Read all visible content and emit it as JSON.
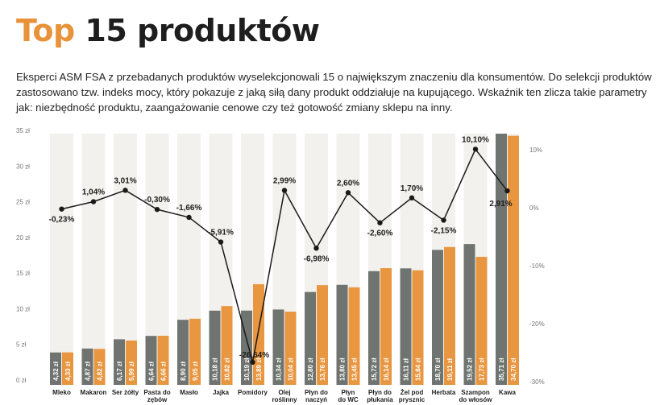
{
  "title_accent": "Top",
  "title_rest": "15 produktów",
  "intro": "Eksperci ASM FSA z przebadanych produktów wyselekcjonowali 15 o największym znaczeniu dla konsumentów. Do selekcji produktów zastosowano tzw. indeks mocy, który pokazuje z jaką siłą dany produkt oddziałuje na kupującego. Wskaźnik ten zlicza takie parametry jak: niezbędność produktu, zaangażowanie cenowe czy też gotowość zmiany sklepu na inny.",
  "colors": {
    "bar1": "#6f7470",
    "bar2": "#e8963f",
    "column": "#f2f1ed",
    "line": "#1a1a1a",
    "title_accent": "#e8923a"
  },
  "chart_data": {
    "type": "bar",
    "categories": [
      [
        "Mleko"
      ],
      [
        "Makaron"
      ],
      [
        "Ser żółty"
      ],
      [
        "Pasta do",
        "zębów"
      ],
      [
        "Masło"
      ],
      [
        "Jajka"
      ],
      [
        "Pomidory"
      ],
      [
        "Olej",
        "roślinny"
      ],
      [
        "Płyn do",
        "naczyń"
      ],
      [
        "Płyn",
        "do WC"
      ],
      [
        "Płyn do",
        "płukania"
      ],
      [
        "Żel pod",
        "prysznic"
      ],
      [
        "Herbata"
      ],
      [
        "Szampon",
        "do włosów"
      ],
      [
        "Kawa"
      ]
    ],
    "series": [
      {
        "values": [
          4.32,
          4.87,
          6.17,
          6.64,
          8.9,
          10.18,
          10.19,
          10.34,
          12.8,
          13.8,
          15.72,
          16.11,
          18.7,
          19.52,
          35.71
        ],
        "labels": [
          "4,32 zł",
          "4,87 zł",
          "6,17 zł",
          "6,64 zł",
          "8,90 zł",
          "10,18 zł",
          "10,19 zł",
          "10,34 zł",
          "12,80 zł",
          "13,80 zł",
          "15,72 zł",
          "16,11 zł",
          "18,70 zł",
          "19,52 zł",
          "35,71 zł"
        ]
      },
      {
        "values": [
          4.33,
          4.82,
          5.99,
          6.66,
          9.05,
          10.82,
          13.89,
          10.04,
          13.76,
          13.45,
          16.14,
          15.84,
          19.11,
          17.73,
          34.7
        ],
        "labels": [
          "4,33 zł",
          "4,82 zł",
          "5,99 zł",
          "6,66 zł",
          "9,05 zł",
          "10,82 zł",
          "13,89 zł",
          "10,04 zł",
          "13,76 zł",
          "13,45 zł",
          "16,14 zł",
          "15,84 zł",
          "19,11 zł",
          "17,73 zł",
          "34,70 zł"
        ]
      }
    ],
    "line": {
      "values": [
        -0.23,
        1.04,
        3.01,
        -0.3,
        -1.66,
        -5.91,
        -26.64,
        2.99,
        -6.98,
        2.6,
        -2.6,
        1.7,
        -2.15,
        10.1,
        2.91
      ],
      "labels": [
        "-0,23%",
        "1,04%",
        "3,01%",
        "-0,30%",
        "-1,66%",
        "-5,91%",
        "-26,64%",
        "2,99%",
        "-6,98%",
        "2,60%",
        "-2,60%",
        "1,70%",
        "-2,15%",
        "10,10%",
        "2,91%"
      ]
    },
    "ylim": [
      0,
      35
    ],
    "y_ticks": [
      "0 zł",
      "5 zł",
      "10 zł",
      "15 zł",
      "20 zł",
      "25 zł",
      "30 zł",
      "35 zł"
    ],
    "y2lim": [
      -30,
      10
    ],
    "y2_ticks": [
      "-30%",
      "-20%",
      "-10%",
      "0%",
      "10%"
    ]
  }
}
